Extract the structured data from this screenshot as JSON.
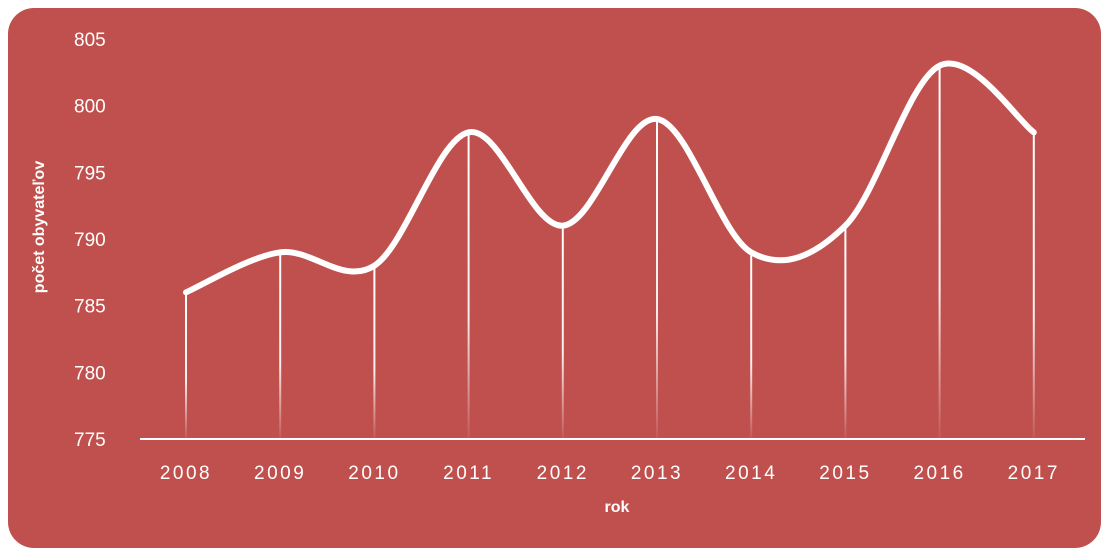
{
  "page": {
    "title": "",
    "background_color": "#c0504d",
    "line_color": "#ffffff"
  },
  "chart_data": {
    "type": "line",
    "title": "",
    "xlabel": "rok",
    "ylabel": "počet obyvateľov",
    "categories": [
      "2008",
      "2009",
      "2010",
      "2011",
      "2012",
      "2013",
      "2014",
      "2015",
      "2016",
      "2017"
    ],
    "series": [
      {
        "values": [
          786,
          789,
          788,
          798,
          791,
          799,
          789,
          791,
          803,
          798
        ]
      }
    ],
    "ylim": [
      775,
      805
    ],
    "yticks": [
      "775",
      "780",
      "785",
      "790",
      "795",
      "800",
      "805"
    ],
    "line_style": "smooth",
    "drop_lines": true,
    "grid": false,
    "legend": "none"
  }
}
